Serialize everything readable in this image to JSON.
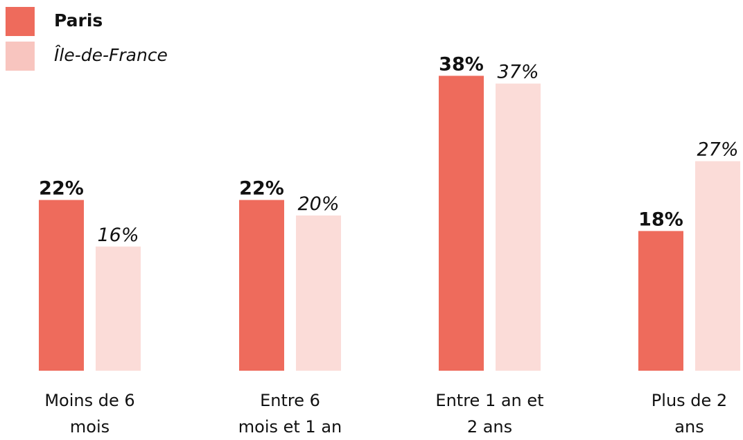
{
  "colors": {
    "paris": "#ee6b5c",
    "idf": "#fbdcd8",
    "idf_swatch": "#f8c5bf"
  },
  "chart_data": {
    "type": "bar",
    "categories": [
      "Moins de 6\nmois",
      "Entre 6\nmois et 1 an",
      "Entre 1 an et\n2 ans",
      "Plus de 2\nans"
    ],
    "series": [
      {
        "name": "Paris",
        "values": [
          22,
          22,
          38,
          18
        ],
        "labels": [
          "22%",
          "22%",
          "38%",
          "18%"
        ]
      },
      {
        "name": "Île-de-France",
        "values": [
          16,
          20,
          37,
          27
        ],
        "labels": [
          "16%",
          "20%",
          "37%",
          "27%"
        ]
      }
    ],
    "legend": "top-left"
  }
}
